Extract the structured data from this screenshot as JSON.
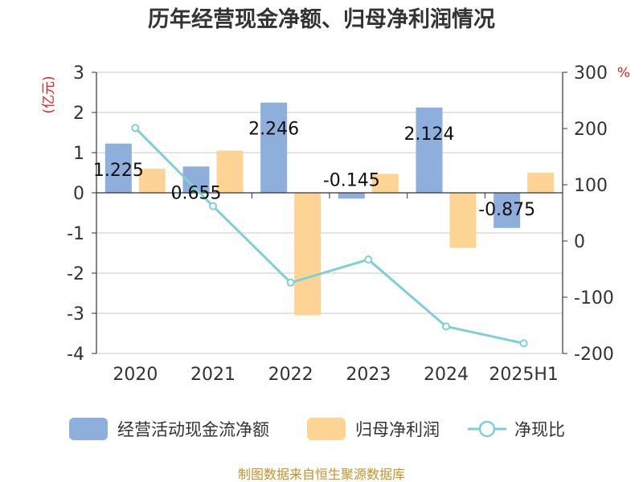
{
  "chart_data": {
    "type": "bar",
    "title": "历年经营现金净额、归母净利润情况",
    "categories": [
      "2020",
      "2021",
      "2022",
      "2023",
      "2024",
      "2025H1"
    ],
    "left_axis": {
      "unit": "(亿元)",
      "ylim": [
        -4,
        3
      ],
      "ticks": [
        3,
        2,
        1,
        0,
        -1,
        -2,
        -3,
        -4
      ]
    },
    "right_axis": {
      "unit": "%",
      "ylim": [
        -200,
        300
      ],
      "ticks": [
        300,
        200,
        100,
        0,
        -100,
        -200
      ]
    },
    "series": [
      {
        "name": "经营活动现金流净额",
        "type": "bar",
        "axis": "left",
        "color": "#8eaedc",
        "values": [
          1.225,
          0.655,
          2.246,
          -0.145,
          2.124,
          -0.875
        ],
        "labels": [
          "1.225",
          "0.655",
          "2.246",
          "-0.145",
          "2.124",
          "-0.875"
        ]
      },
      {
        "name": "归母净利润",
        "type": "bar",
        "axis": "left",
        "color": "#fdd493",
        "values": [
          0.6,
          1.05,
          -3.05,
          0.47,
          -1.37,
          0.5
        ]
      },
      {
        "name": "净现比",
        "type": "line",
        "axis": "right",
        "color": "#7fd0d6",
        "values": [
          201,
          62,
          -74,
          -33,
          -152,
          -182
        ]
      }
    ],
    "grid": true,
    "legend_position": "bottom"
  },
  "source_text": "制图数据来自恒生聚源数据库"
}
